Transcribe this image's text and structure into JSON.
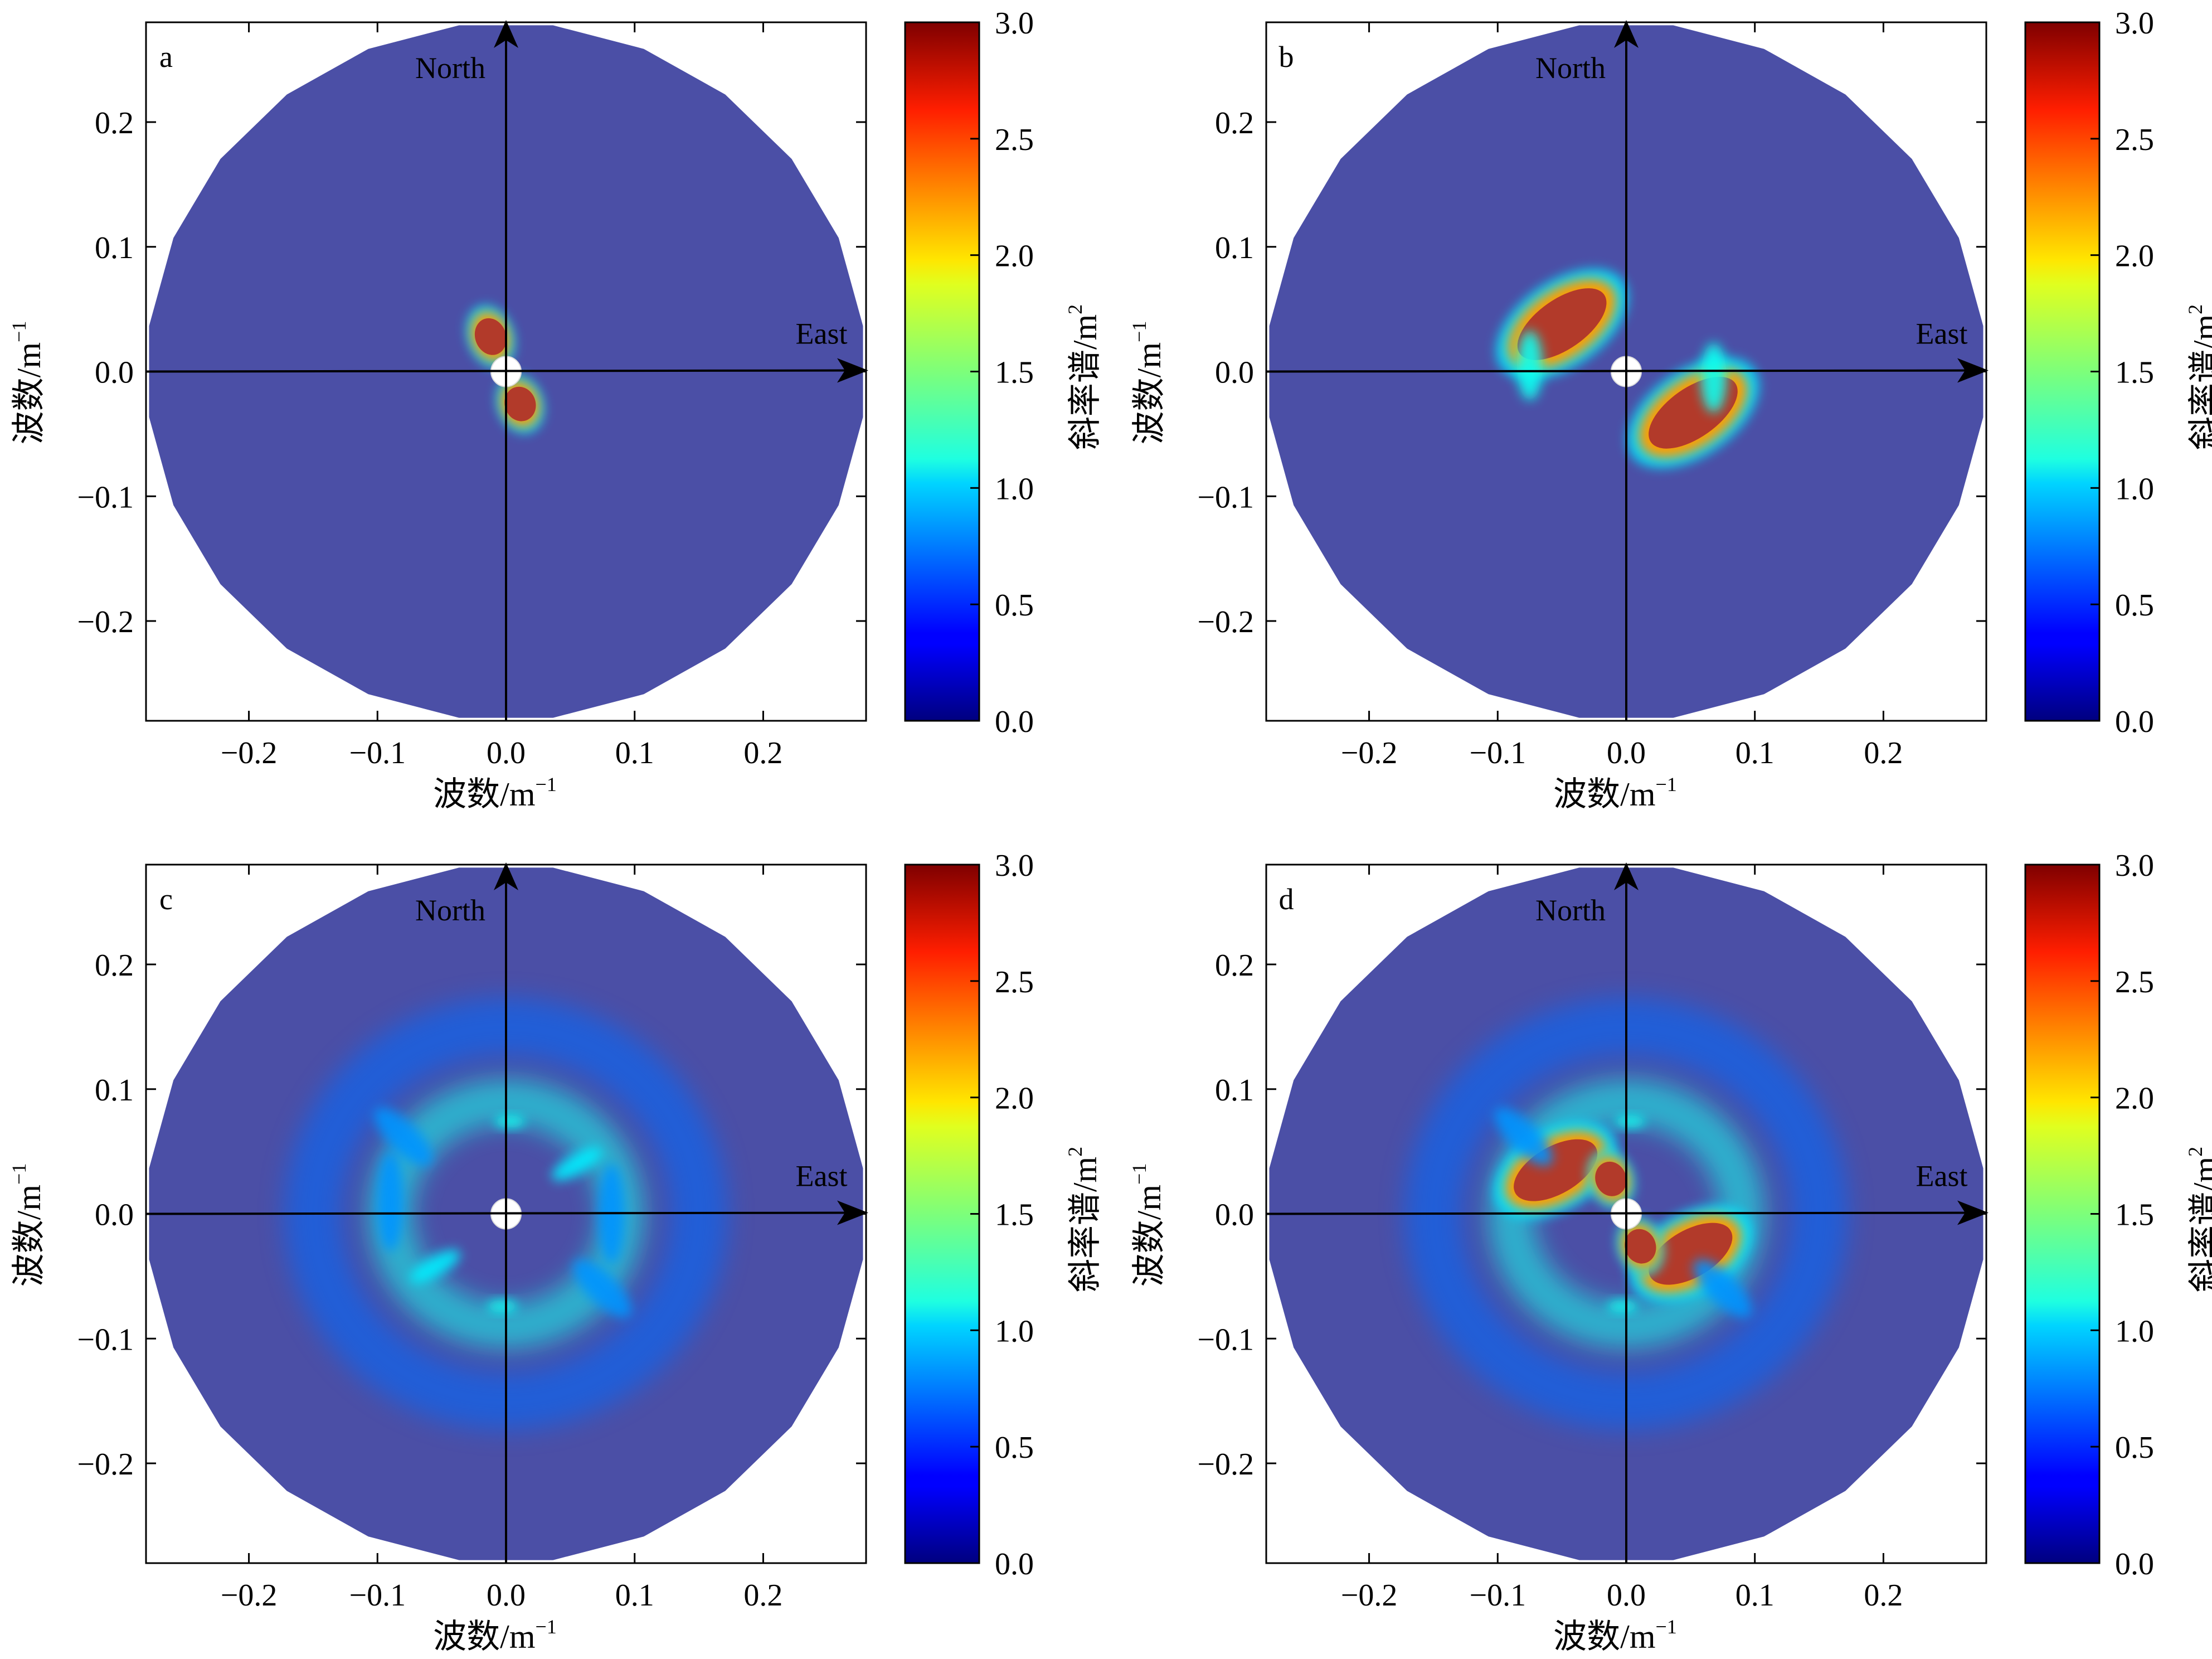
{
  "figure": {
    "xlabel": "波数/m",
    "ylabel": "波数/m",
    "unit_sup": "−1",
    "colorbar_label": "斜率谱/m",
    "colorbar_sup": "2",
    "north_label": "North",
    "east_label": "East",
    "colormap": "jet",
    "colors": {
      "background_fill": "#4b4fa6",
      "hot": "#b23a2a",
      "axis": "#000000"
    }
  },
  "chart_data": [
    {
      "type": "heatmap",
      "panel_label": "a",
      "x_ticks": [
        "−0.2",
        "−0.1",
        "0.0",
        "0.1",
        "0.2"
      ],
      "y_ticks": [
        "0.2",
        "0.1",
        "0.0",
        "−0.1",
        "−0.2"
      ],
      "tick_values": [
        -0.2,
        -0.1,
        0.0,
        0.1,
        0.2
      ],
      "xlim": [
        -0.28,
        0.28
      ],
      "ylim": [
        -0.28,
        0.28
      ],
      "colorbar_ticks": [
        "3.0",
        "2.5",
        "2.0",
        "1.5",
        "1.0",
        "0.5",
        "0.0"
      ],
      "colorbar_range": [
        0,
        3
      ],
      "disk_radius": 0.28,
      "blobs": [
        {
          "kx": -0.012,
          "ky": 0.028,
          "rx": 0.012,
          "ry": 0.015,
          "angle": -20,
          "peak": 3.0
        },
        {
          "kx": 0.011,
          "ky": -0.026,
          "rx": 0.012,
          "ry": 0.014,
          "angle": -20,
          "peak": 3.0
        }
      ],
      "rings": []
    },
    {
      "type": "heatmap",
      "panel_label": "b",
      "x_ticks": [
        "−0.2",
        "−0.1",
        "0.0",
        "0.1",
        "0.2"
      ],
      "y_ticks": [
        "0.2",
        "0.1",
        "0.0",
        "−0.1",
        "−0.2"
      ],
      "tick_values": [
        -0.2,
        -0.1,
        0.0,
        0.1,
        0.2
      ],
      "xlim": [
        -0.28,
        0.28
      ],
      "ylim": [
        -0.28,
        0.28
      ],
      "colorbar_ticks": [
        "3.0",
        "2.5",
        "2.0",
        "1.5",
        "1.0",
        "0.5",
        "0.0"
      ],
      "colorbar_range": [
        0,
        3
      ],
      "disk_radius": 0.28,
      "blobs": [
        {
          "kx": -0.05,
          "ky": 0.038,
          "rx": 0.04,
          "ry": 0.02,
          "angle": -35,
          "peak": 3.0
        },
        {
          "kx": -0.075,
          "ky": 0.005,
          "rx": 0.01,
          "ry": 0.028,
          "angle": 0,
          "peak": 1.3
        },
        {
          "kx": 0.052,
          "ky": -0.033,
          "rx": 0.04,
          "ry": 0.02,
          "angle": -35,
          "peak": 3.0
        },
        {
          "kx": 0.068,
          "ky": -0.005,
          "rx": 0.01,
          "ry": 0.028,
          "angle": 0,
          "peak": 1.3
        }
      ],
      "rings": []
    },
    {
      "type": "heatmap",
      "panel_label": "c",
      "x_ticks": [
        "−0.2",
        "−0.1",
        "0.0",
        "0.1",
        "0.2"
      ],
      "y_ticks": [
        "0.2",
        "0.1",
        "0.0",
        "−0.1",
        "−0.2"
      ],
      "tick_values": [
        -0.2,
        -0.1,
        0.0,
        0.1,
        0.2
      ],
      "xlim": [
        -0.28,
        0.28
      ],
      "ylim": [
        -0.28,
        0.28
      ],
      "colorbar_ticks": [
        "3.0",
        "2.5",
        "2.0",
        "1.5",
        "1.0",
        "0.5",
        "0.0"
      ],
      "colorbar_range": [
        0,
        3
      ],
      "disk_radius": 0.28,
      "blobs": [
        {
          "kx": 0.003,
          "ky": 0.074,
          "rx": 0.012,
          "ry": 0.005,
          "angle": 0,
          "peak": 1.3
        },
        {
          "kx": -0.003,
          "ky": -0.074,
          "rx": 0.012,
          "ry": 0.005,
          "angle": 0,
          "peak": 1.3
        },
        {
          "kx": 0.055,
          "ky": 0.04,
          "rx": 0.022,
          "ry": 0.008,
          "angle": -30,
          "peak": 1.2
        },
        {
          "kx": -0.055,
          "ky": -0.042,
          "rx": 0.022,
          "ry": 0.008,
          "angle": -30,
          "peak": 1.2
        },
        {
          "kx": -0.08,
          "ky": 0.062,
          "rx": 0.03,
          "ry": 0.012,
          "angle": 45,
          "peak": 0.9
        },
        {
          "kx": 0.075,
          "ky": -0.06,
          "rx": 0.03,
          "ry": 0.012,
          "angle": 45,
          "peak": 0.9
        },
        {
          "kx": 0.082,
          "ky": 0.0,
          "rx": 0.01,
          "ry": 0.04,
          "angle": 0,
          "peak": 0.9
        },
        {
          "kx": -0.09,
          "ky": 0.01,
          "rx": 0.01,
          "ry": 0.04,
          "angle": 0,
          "peak": 0.9
        }
      ],
      "rings": [
        {
          "r": 0.09,
          "width": 0.035,
          "level": 0.55
        },
        {
          "r": 0.15,
          "width": 0.045,
          "level": 0.32
        }
      ]
    },
    {
      "type": "heatmap",
      "panel_label": "d",
      "x_ticks": [
        "−0.2",
        "−0.1",
        "0.0",
        "0.1",
        "0.2"
      ],
      "y_ticks": [
        "0.2",
        "0.1",
        "0.0",
        "−0.1",
        "−0.2"
      ],
      "tick_values": [
        -0.2,
        -0.1,
        0.0,
        0.1,
        0.2
      ],
      "xlim": [
        -0.28,
        0.28
      ],
      "ylim": [
        -0.28,
        0.28
      ],
      "colorbar_ticks": [
        "3.0",
        "2.5",
        "2.0",
        "1.5",
        "1.0",
        "0.5",
        "0.0"
      ],
      "colorbar_range": [
        0,
        3
      ],
      "disk_radius": 0.28,
      "blobs": [
        {
          "kx": -0.055,
          "ky": 0.035,
          "rx": 0.036,
          "ry": 0.019,
          "angle": -30,
          "peak": 3.0
        },
        {
          "kx": -0.012,
          "ky": 0.028,
          "rx": 0.012,
          "ry": 0.014,
          "angle": -20,
          "peak": 3.0
        },
        {
          "kx": 0.05,
          "ky": -0.032,
          "rx": 0.036,
          "ry": 0.019,
          "angle": -30,
          "peak": 3.0
        },
        {
          "kx": 0.011,
          "ky": -0.026,
          "rx": 0.012,
          "ry": 0.014,
          "angle": -20,
          "peak": 3.0
        },
        {
          "kx": 0.003,
          "ky": 0.074,
          "rx": 0.012,
          "ry": 0.005,
          "angle": 0,
          "peak": 1.3
        },
        {
          "kx": -0.003,
          "ky": -0.074,
          "rx": 0.012,
          "ry": 0.005,
          "angle": 0,
          "peak": 1.3
        },
        {
          "kx": -0.08,
          "ky": 0.062,
          "rx": 0.03,
          "ry": 0.012,
          "angle": 45,
          "peak": 0.9
        },
        {
          "kx": 0.075,
          "ky": -0.06,
          "rx": 0.03,
          "ry": 0.012,
          "angle": 45,
          "peak": 0.9
        }
      ],
      "rings": [
        {
          "r": 0.09,
          "width": 0.035,
          "level": 0.55
        },
        {
          "r": 0.15,
          "width": 0.045,
          "level": 0.32
        }
      ]
    }
  ]
}
